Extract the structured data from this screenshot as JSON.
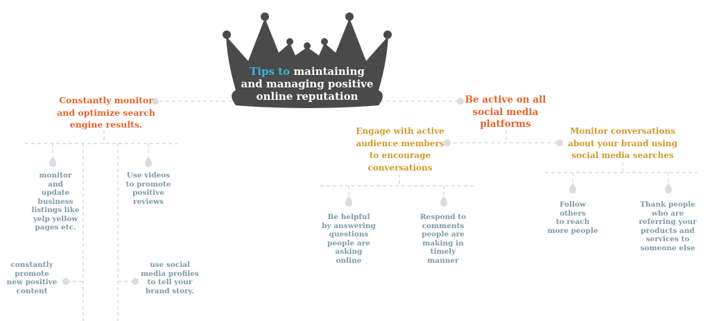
{
  "title": {
    "accent": "Tips to",
    "rest_line1": "maintaining",
    "line2": "and managing positive",
    "line3": "online reputation"
  },
  "left_branch": {
    "heading": [
      "Constantly monitor",
      "and optimize search",
      "engine results."
    ],
    "leaves": {
      "monitor_listings": [
        "monitor",
        "and",
        "update",
        "business",
        "listings like",
        "yelp yellow",
        "pages etc."
      ],
      "use_videos": [
        "Use videos",
        "to promote",
        "positive",
        "reviews"
      ],
      "promote_content": [
        "constantly",
        "promote",
        "new positive",
        "content"
      ],
      "social_profiles": [
        "use social",
        "media profiles",
        "to tell your",
        "brand story."
      ]
    }
  },
  "right_branch": {
    "heading": [
      "Be active on all",
      "social media",
      "platforms"
    ],
    "engage": {
      "heading": [
        "Engage with active",
        "audience members",
        "to encourage",
        "conversations"
      ],
      "leaves": {
        "helpful": [
          "Be helpful",
          "by answering",
          "questions",
          "people are",
          "asking",
          "online"
        ],
        "respond": [
          "Respond to",
          "comments",
          "people are",
          "making in",
          "timely",
          "manner"
        ]
      }
    },
    "monitor": {
      "heading": [
        "Monitor conversations",
        "about your brand using",
        "social media searches"
      ],
      "leaves": {
        "follow": [
          "Follow",
          "others",
          "to reach",
          "more people"
        ],
        "thank": [
          "Thank people",
          "who are",
          "referring your",
          "products and",
          "services to",
          "someone else"
        ]
      }
    }
  },
  "colors": {
    "crown": "#4a4a4a",
    "accent": "#3bb4d8",
    "orange": "#e8622a",
    "gold": "#d29a2a",
    "leaf_text": "#7d9aa6",
    "connector": "#cfd3d6"
  }
}
